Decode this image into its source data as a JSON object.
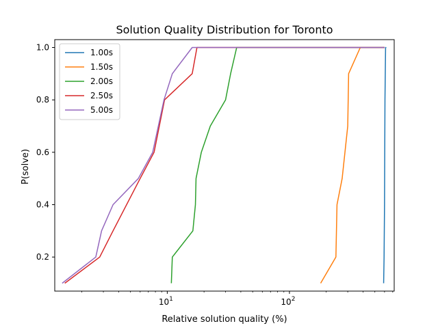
{
  "chart_data": {
    "type": "line",
    "title": "Solution Quality Distribution for Toronto",
    "xlabel": "Relative solution quality (%)",
    "ylabel": "P(solve)",
    "x_scale": "log",
    "xlim": [
      1.2,
      720
    ],
    "ylim": [
      0.07,
      1.03
    ],
    "x_major_ticks": [
      {
        "value": 10,
        "base": "10",
        "exp": "1"
      },
      {
        "value": 100,
        "base": "10",
        "exp": "2"
      }
    ],
    "y_ticks": [
      {
        "value": 0.2,
        "label": "0.2"
      },
      {
        "value": 0.4,
        "label": "0.4"
      },
      {
        "value": 0.6,
        "label": "0.6"
      },
      {
        "value": 0.8,
        "label": "0.8"
      },
      {
        "value": 1.0,
        "label": "1.0"
      }
    ],
    "grid": false,
    "legend_position": "top-left",
    "series": [
      {
        "name": "1.00s",
        "color": "#1f77b4",
        "points": [
          [
            590,
            0.1
          ],
          [
            595,
            0.2
          ],
          [
            600,
            0.4
          ],
          [
            605,
            0.8
          ],
          [
            612,
            1.0
          ],
          [
            616,
            1.0
          ],
          [
            610,
            1.0
          ]
        ]
      },
      {
        "name": "1.50s",
        "color": "#ff7f0e",
        "points": [
          [
            180,
            0.1
          ],
          [
            240,
            0.2
          ],
          [
            245,
            0.4
          ],
          [
            270,
            0.5
          ],
          [
            300,
            0.7
          ],
          [
            305,
            0.9
          ],
          [
            380,
            1.0
          ],
          [
            600,
            1.0
          ]
        ]
      },
      {
        "name": "2.00s",
        "color": "#2ca02c",
        "points": [
          [
            10.8,
            0.1
          ],
          [
            11.0,
            0.2
          ],
          [
            16.2,
            0.3
          ],
          [
            17.0,
            0.4
          ],
          [
            17.2,
            0.5
          ],
          [
            19.0,
            0.6
          ],
          [
            22.5,
            0.7
          ],
          [
            30.0,
            0.8
          ],
          [
            33.0,
            0.9
          ],
          [
            37.0,
            1.0
          ],
          [
            600,
            1.0
          ]
        ]
      },
      {
        "name": "2.50s",
        "color": "#d62728",
        "points": [
          [
            1.45,
            0.1
          ],
          [
            2.8,
            0.2
          ],
          [
            3.6,
            0.3
          ],
          [
            6.0,
            0.5
          ],
          [
            7.8,
            0.6
          ],
          [
            9.5,
            0.8
          ],
          [
            16.0,
            0.9
          ],
          [
            17.5,
            1.0
          ],
          [
            600,
            1.0
          ]
        ]
      },
      {
        "name": "5.00s",
        "color": "#9467bd",
        "points": [
          [
            1.38,
            0.1
          ],
          [
            2.6,
            0.2
          ],
          [
            2.9,
            0.3
          ],
          [
            3.6,
            0.4
          ],
          [
            5.8,
            0.5
          ],
          [
            7.6,
            0.6
          ],
          [
            9.4,
            0.8
          ],
          [
            11.0,
            0.9
          ],
          [
            16.0,
            1.0
          ],
          [
            600,
            1.0
          ]
        ]
      }
    ]
  }
}
